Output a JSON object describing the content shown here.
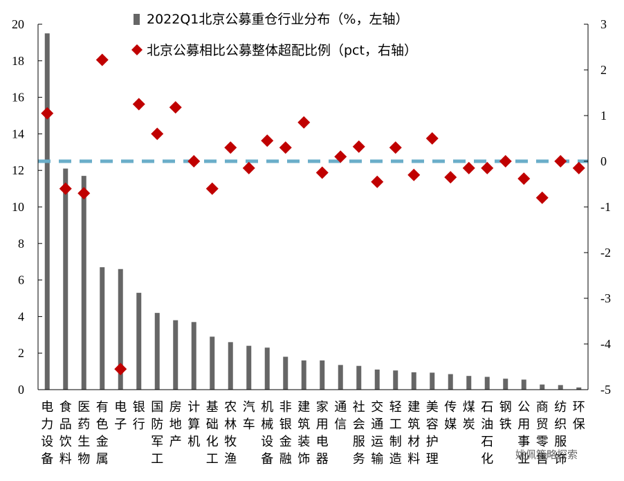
{
  "chart_data": {
    "type": "bar",
    "categories": [
      [
        "电",
        "力",
        "设",
        "备"
      ],
      [
        "食",
        "品",
        "饮",
        "料"
      ],
      [
        "医",
        "药",
        "生",
        "物"
      ],
      [
        "有",
        "色",
        "金",
        "属"
      ],
      [
        "电",
        "子"
      ],
      [
        "银",
        "行"
      ],
      [
        "国",
        "防",
        "军",
        "工"
      ],
      [
        "房",
        "地",
        "产"
      ],
      [
        "计",
        "算",
        "机"
      ],
      [
        "基",
        "础",
        "化",
        "工"
      ],
      [
        "农",
        "林",
        "牧",
        "渔"
      ],
      [
        "汽",
        "车"
      ],
      [
        "机",
        "械",
        "设",
        "备"
      ],
      [
        "非",
        "银",
        "金",
        "融"
      ],
      [
        "建",
        "筑",
        "装",
        "饰"
      ],
      [
        "家",
        "用",
        "电",
        "器"
      ],
      [
        "通",
        "信"
      ],
      [
        "社",
        "会",
        "服",
        "务"
      ],
      [
        "交",
        "通",
        "运",
        "输"
      ],
      [
        "轻",
        "工",
        "制",
        "造"
      ],
      [
        "建",
        "筑",
        "材",
        "料"
      ],
      [
        "美",
        "容",
        "护",
        "理"
      ],
      [
        "传",
        "媒"
      ],
      [
        "煤",
        "炭"
      ],
      [
        "石",
        "油",
        "石",
        "化"
      ],
      [
        "钢",
        "铁"
      ],
      [
        "公",
        "用",
        "事",
        "业"
      ],
      [
        "商",
        "贸",
        "零",
        "售"
      ],
      [
        "纺",
        "织",
        "服",
        "饰"
      ],
      [
        "环",
        "保"
      ]
    ],
    "series": [
      {
        "name": "2022Q1北京公募重仓行业分布（%，左轴）",
        "type": "bar",
        "axis": "left",
        "color": "#666666",
        "values": [
          19.5,
          12.1,
          11.7,
          6.7,
          6.6,
          5.3,
          4.2,
          3.8,
          3.7,
          2.9,
          2.6,
          2.4,
          2.3,
          1.8,
          1.6,
          1.6,
          1.35,
          1.3,
          1.1,
          1.05,
          0.95,
          0.93,
          0.85,
          0.75,
          0.7,
          0.6,
          0.55,
          0.28,
          0.25,
          0.12
        ]
      },
      {
        "name": "北京公募相比公募整体超配比例（pct，右轴）",
        "type": "scatter",
        "axis": "right",
        "color": "#c00000",
        "values": [
          1.05,
          -0.6,
          -0.7,
          2.22,
          -4.55,
          1.25,
          0.6,
          1.18,
          0.0,
          -0.6,
          0.3,
          -0.15,
          0.45,
          0.3,
          0.85,
          -0.25,
          0.1,
          0.32,
          -0.45,
          0.3,
          -0.3,
          0.5,
          -0.35,
          -0.15,
          -0.15,
          0.0,
          -0.38,
          -0.8,
          0.0,
          -0.15
        ]
      }
    ],
    "y_left": {
      "min": 0,
      "max": 20,
      "ticks": [
        "0",
        "2",
        "4",
        "6",
        "8",
        "10",
        "12",
        "14",
        "16",
        "18",
        "20"
      ]
    },
    "y_right": {
      "min": -5,
      "max": 3,
      "ticks": [
        "-5",
        "-4",
        "-3",
        "-2",
        "-1",
        "0",
        "1",
        "2",
        "3"
      ]
    },
    "reference_line": {
      "axis": "right",
      "value": 0,
      "style": "dashed",
      "color": "#6aaec9"
    },
    "grid": false,
    "legend_position": "top"
  },
  "watermark": {
    "text": "姚佩策略探索"
  }
}
